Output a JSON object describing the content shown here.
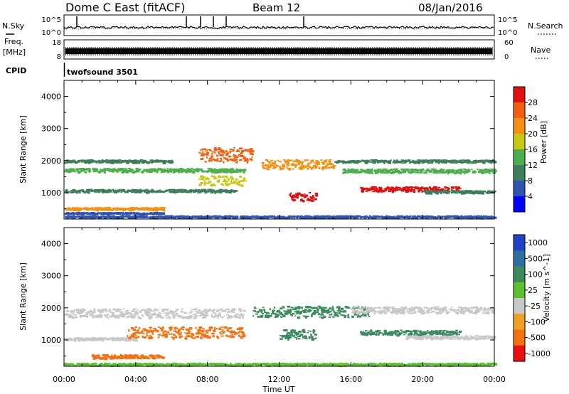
{
  "header": {
    "station": "Dome C East (fitACF)",
    "beam": "Beam 12",
    "date": "08/Jan/2016"
  },
  "strip": {
    "nsky_label": "N.Sky",
    "nsearch_label": "N.Search",
    "freq_label": "Freq.",
    "freq_unit": "[MHz]",
    "nave_label": "Nave",
    "cpid_label": "CPID",
    "cpid_value": "twofsound 3501",
    "noise_top_left": "10^5",
    "noise_bottom_left": "10^0",
    "noise_top_right": "10^5",
    "noise_bottom_right": "10^0",
    "freq_top": "18",
    "freq_bottom": "8",
    "nave_top": "60",
    "nave_bottom": "0"
  },
  "chart_data": [
    {
      "type": "heatmap",
      "panel": "power",
      "ylabel": "Slant Range [km]",
      "xlabel": "",
      "xlim": [
        "00:00",
        "24:00"
      ],
      "ylim": [
        180,
        4500
      ],
      "yticks": [
        "1000",
        "2000",
        "3000",
        "4000"
      ],
      "colorbar_label": "Power [dB]",
      "colorbar_ticks": [
        "4",
        "8",
        "12",
        "16",
        "20",
        "24",
        "28"
      ],
      "colorbar_colors": [
        "#0000ff",
        "#2f54b4",
        "#3d7e5d",
        "#4cae4c",
        "#c8c810",
        "#f59010",
        "#f56010",
        "#e01010"
      ],
      "bands": [
        {
          "t0": 0.0,
          "t1": 10.0,
          "r": 1720,
          "w": 110,
          "color": "#4cae4c"
        },
        {
          "t0": 0.0,
          "t1": 6.0,
          "r": 2000,
          "w": 80,
          "color": "#3d7e5d"
        },
        {
          "t0": 0.0,
          "t1": 9.5,
          "r": 1080,
          "w": 80,
          "color": "#3d7e5d"
        },
        {
          "t0": 0.0,
          "t1": 5.5,
          "r": 520,
          "w": 80,
          "color": "#f59010"
        },
        {
          "t0": 0.0,
          "t1": 5.5,
          "r": 380,
          "w": 50,
          "color": "#2f54b4"
        },
        {
          "t0": 7.5,
          "t1": 10.5,
          "r": 2200,
          "w": 450,
          "color": "#f56010"
        },
        {
          "t0": 7.5,
          "t1": 10.0,
          "r": 1400,
          "w": 300,
          "color": "#c8c810"
        },
        {
          "t0": 11.0,
          "t1": 15.0,
          "r": 1900,
          "w": 300,
          "color": "#f59010"
        },
        {
          "t0": 12.5,
          "t1": 14.0,
          "r": 900,
          "w": 250,
          "color": "#e01010"
        },
        {
          "t0": 15.5,
          "t1": 24.0,
          "r": 1700,
          "w": 120,
          "color": "#4cae4c"
        },
        {
          "t0": 15.0,
          "t1": 24.0,
          "r": 2000,
          "w": 80,
          "color": "#3d7e5d"
        },
        {
          "t0": 16.5,
          "t1": 22.0,
          "r": 1130,
          "w": 150,
          "color": "#e01010"
        },
        {
          "t0": 20.0,
          "t1": 24.0,
          "r": 1050,
          "w": 80,
          "color": "#3d7e5d"
        },
        {
          "t0": 0.0,
          "t1": 24.0,
          "r": 270,
          "w": 60,
          "color": "#2f54b4"
        }
      ]
    },
    {
      "type": "heatmap",
      "panel": "velocity",
      "ylabel": "Slant Range [km]",
      "xlabel": "Time UT",
      "xlim": [
        "00:00",
        "24:00"
      ],
      "ylim": [
        180,
        4500
      ],
      "xticks": [
        "00:00",
        "04:00",
        "08:00",
        "12:00",
        "16:00",
        "20:00",
        "00:00"
      ],
      "yticks": [
        "1000",
        "2000",
        "3000",
        "4000"
      ],
      "colorbar_label": "Velocity [m s^-1]",
      "colorbar_ticks": [
        "1000",
        "500",
        "100",
        "25",
        "-25",
        "-100",
        "-500",
        "-1000"
      ],
      "colorbar_colors": [
        "#2040c8",
        "#2f6fa0",
        "#3a8a5e",
        "#5bc030",
        "#c8c8c8",
        "#f0a020",
        "#f57010",
        "#e81010"
      ],
      "bands": [
        {
          "t0": 0.0,
          "t1": 10.0,
          "r": 1850,
          "w": 280,
          "color": "#c8c8c8"
        },
        {
          "t0": 0.0,
          "t1": 4.0,
          "r": 1050,
          "w": 80,
          "color": "#c8c8c8"
        },
        {
          "t0": 3.5,
          "t1": 10.0,
          "r": 1250,
          "w": 350,
          "color": "#f57010"
        },
        {
          "t0": 1.5,
          "t1": 5.5,
          "r": 500,
          "w": 120,
          "color": "#f57010"
        },
        {
          "t0": 0.0,
          "t1": 24.0,
          "r": 260,
          "w": 70,
          "color": "#5bc030"
        },
        {
          "t0": 10.5,
          "t1": 17.0,
          "r": 1900,
          "w": 350,
          "color": "#3a8a5e"
        },
        {
          "t0": 12.0,
          "t1": 14.0,
          "r": 1200,
          "w": 300,
          "color": "#3a8a5e"
        },
        {
          "t0": 16.0,
          "t1": 24.0,
          "r": 1950,
          "w": 200,
          "color": "#c8c8c8"
        },
        {
          "t0": 16.5,
          "t1": 22.0,
          "r": 1250,
          "w": 150,
          "color": "#3a8a5e"
        },
        {
          "t0": 19.0,
          "t1": 24.0,
          "r": 1100,
          "w": 100,
          "color": "#c8c8c8"
        }
      ]
    }
  ]
}
